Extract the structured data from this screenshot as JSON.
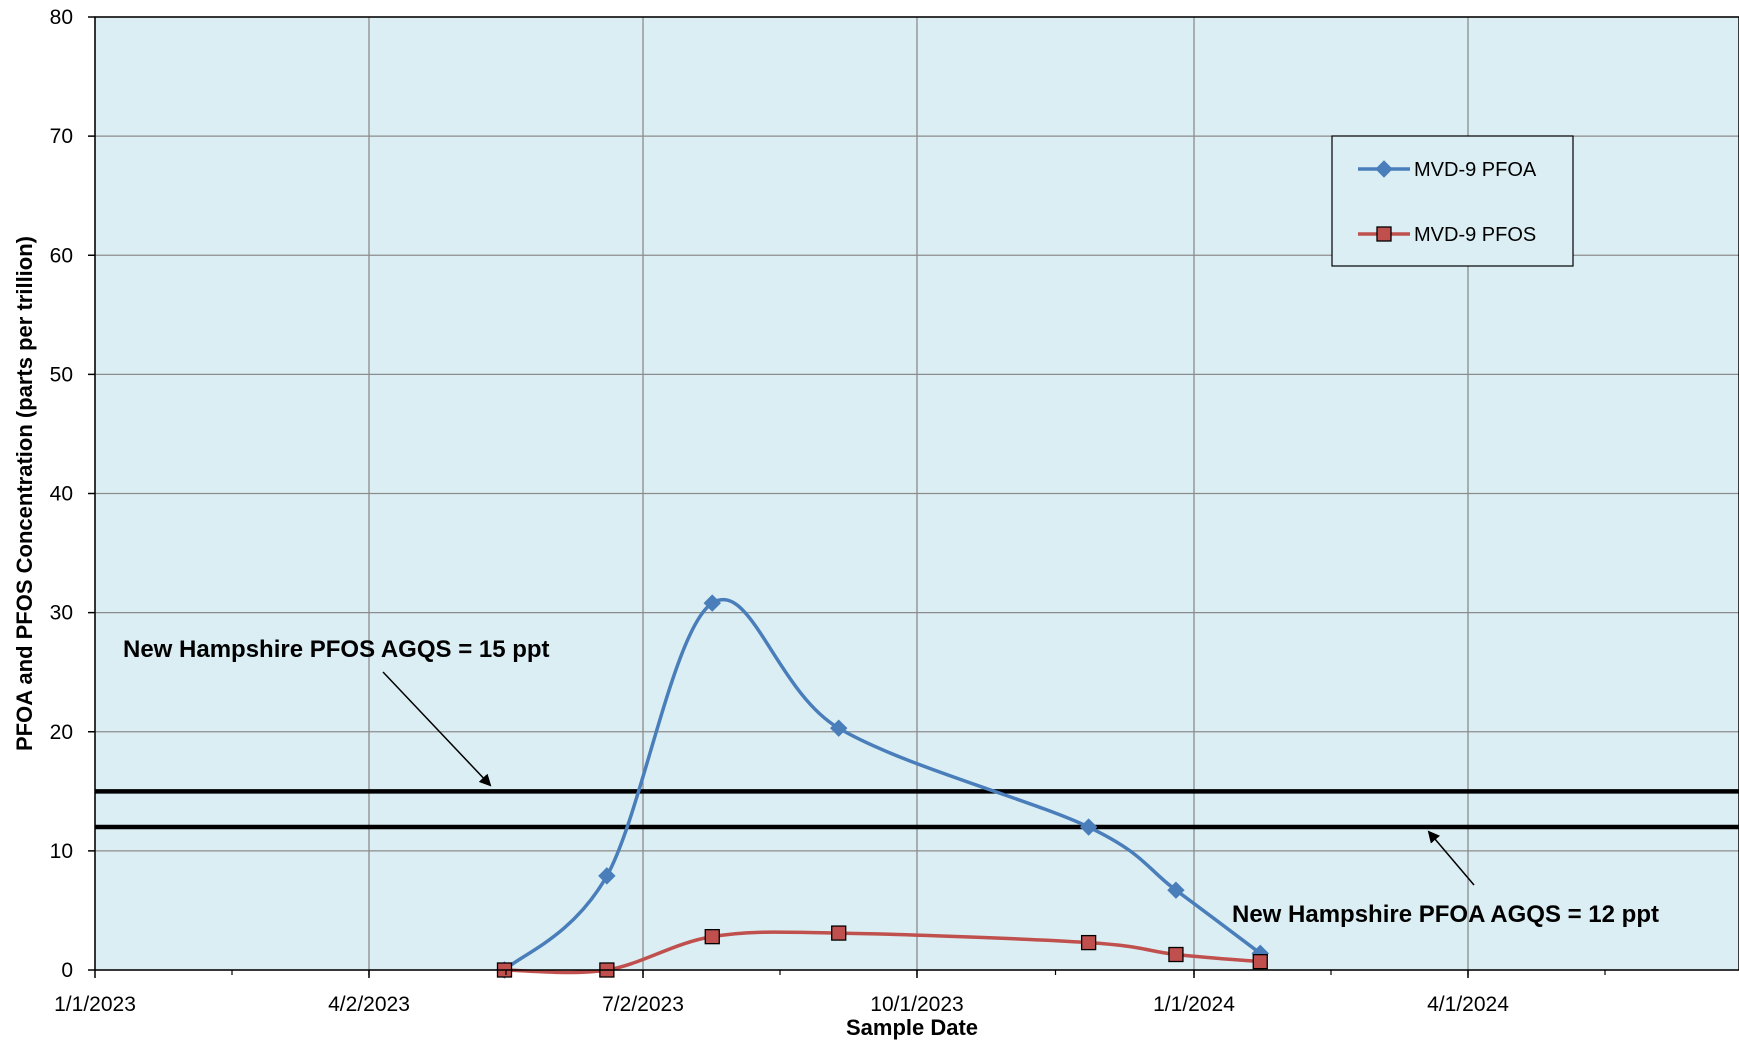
{
  "chart_data": {
    "type": "line",
    "title": "",
    "xlabel": "Sample Date",
    "ylabel": "PFOA and PFOS Concentration (parts per trillion)",
    "ylim": [
      0,
      80
    ],
    "yticks": [
      "0",
      "10",
      "20",
      "30",
      "40",
      "50",
      "60",
      "70",
      "80"
    ],
    "xlim": [
      "2023-01-01",
      "2024-06-30"
    ],
    "xticks": [
      {
        "date": "2023-01-01",
        "label": "1/1/2023"
      },
      {
        "date": "2023-04-02",
        "label": "4/2/2023"
      },
      {
        "date": "2023-07-02",
        "label": "7/2/2023"
      },
      {
        "date": "2023-10-01",
        "label": "10/1/2023"
      },
      {
        "date": "2024-01-01",
        "label": "1/1/2024"
      },
      {
        "date": "2024-04-01",
        "label": "4/1/2024"
      }
    ],
    "grid": true,
    "legend_position": "top-right",
    "background_color": "#dbeef4",
    "series": [
      {
        "name": "MVD-9 PFOA",
        "color": "#4a7ebb",
        "marker": "diamond",
        "points": [
          {
            "x": "2023-05-17",
            "y": 0.0
          },
          {
            "x": "2023-06-20",
            "y": 7.9
          },
          {
            "x": "2023-07-25",
            "y": 30.8
          },
          {
            "x": "2023-09-05",
            "y": 20.3
          },
          {
            "x": "2023-11-27",
            "y": 12.0
          },
          {
            "x": "2023-12-26",
            "y": 6.7
          },
          {
            "x": "2024-01-23",
            "y": 1.4
          }
        ]
      },
      {
        "name": "MVD-9 PFOS",
        "color": "#c0504d",
        "marker": "square",
        "points": [
          {
            "x": "2023-05-17",
            "y": 0.0
          },
          {
            "x": "2023-06-20",
            "y": 0.0
          },
          {
            "x": "2023-07-25",
            "y": 2.8
          },
          {
            "x": "2023-09-05",
            "y": 3.1
          },
          {
            "x": "2023-11-27",
            "y": 2.3
          },
          {
            "x": "2023-12-26",
            "y": 1.3
          },
          {
            "x": "2024-01-23",
            "y": 0.7
          }
        ]
      }
    ],
    "reference_lines": [
      {
        "y": 15,
        "label": "New Hampshire PFOS AGQS = 15 ppt"
      },
      {
        "y": 12,
        "label": "New Hampshire PFOA AGQS = 12 ppt"
      }
    ]
  }
}
